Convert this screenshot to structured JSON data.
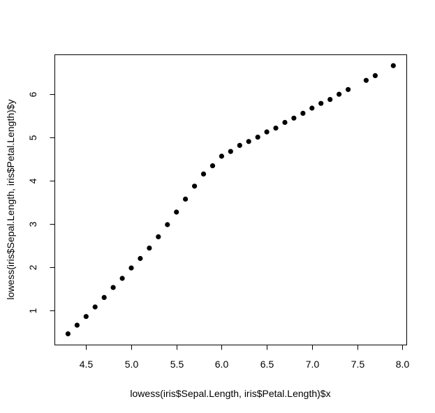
{
  "chart_data": {
    "type": "scatter",
    "title": "",
    "xlabel": "lowess(iris$Sepal.Length, iris$Petal.Length)$x",
    "ylabel": "lowess(iris$Sepal.Length, iris$Petal.Length)$y",
    "xlim": [
      4.3,
      7.9
    ],
    "ylim": [
      0.46,
      6.65
    ],
    "x_ticks": [
      4.5,
      5.0,
      5.5,
      6.0,
      6.5,
      7.0,
      7.5,
      8.0
    ],
    "x_tick_labels": [
      "4.5",
      "5.0",
      "5.5",
      "6.0",
      "6.5",
      "7.0",
      "7.5",
      "8.0"
    ],
    "y_ticks": [
      1,
      2,
      3,
      4,
      5,
      6
    ],
    "y_tick_labels": [
      "1",
      "2",
      "3",
      "4",
      "5",
      "6"
    ],
    "grid": false,
    "legend": null,
    "marker": "filled-circle",
    "marker_color": "#000000",
    "series": [
      {
        "name": "lowess",
        "x": [
          4.3,
          4.4,
          4.5,
          4.6,
          4.7,
          4.8,
          4.9,
          5.0,
          5.1,
          5.2,
          5.3,
          5.4,
          5.5,
          5.6,
          5.7,
          5.8,
          5.9,
          6.0,
          6.1,
          6.2,
          6.3,
          6.4,
          6.5,
          6.6,
          6.7,
          6.8,
          6.9,
          7.0,
          7.1,
          7.2,
          7.3,
          7.4,
          7.6,
          7.7,
          7.9
        ],
        "y": [
          0.46,
          0.66,
          0.86,
          1.08,
          1.3,
          1.53,
          1.74,
          1.98,
          2.2,
          2.44,
          2.7,
          2.98,
          3.27,
          3.57,
          3.87,
          4.15,
          4.34,
          4.56,
          4.67,
          4.81,
          4.9,
          5.0,
          5.12,
          5.21,
          5.34,
          5.44,
          5.55,
          5.67,
          5.78,
          5.87,
          5.99,
          6.1,
          6.31,
          6.42,
          6.65
        ]
      }
    ]
  }
}
